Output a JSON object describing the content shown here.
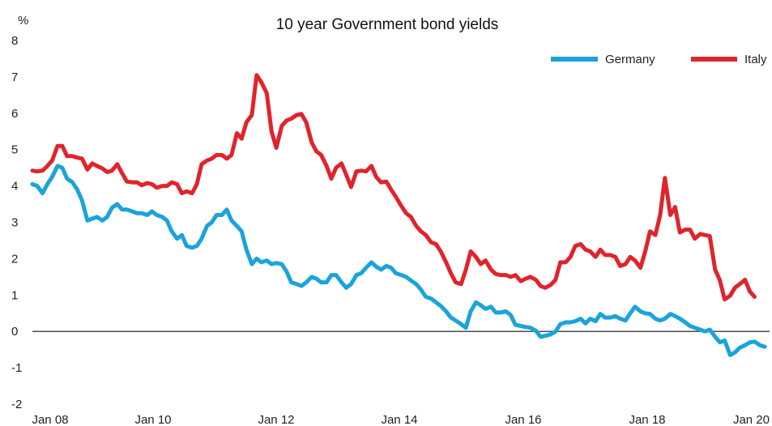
{
  "chart_data": {
    "type": "line",
    "title": "10 year Government bond yields",
    "y_unit": "%",
    "ylim": [
      -2,
      8
    ],
    "y_ticks": [
      "8",
      "7",
      "6",
      "5",
      "4",
      "3",
      "2",
      "1",
      "0",
      "-1",
      "-2"
    ],
    "x_tick_labels": [
      "Jan 08",
      "Jan 10",
      "Jan 12",
      "Jan 14",
      "Jan 16",
      "Jan 18",
      "Jan 20"
    ],
    "xlim": [
      2008.0,
      2020.33
    ],
    "zero_line": true,
    "legend_position": "top-right",
    "series": [
      {
        "name": "Germany",
        "color": "#1aa3dc",
        "points": [
          [
            2008.0,
            4.05
          ],
          [
            2008.08,
            4.0
          ],
          [
            2008.17,
            3.8
          ],
          [
            2008.25,
            4.05
          ],
          [
            2008.33,
            4.25
          ],
          [
            2008.42,
            4.55
          ],
          [
            2008.5,
            4.5
          ],
          [
            2008.58,
            4.2
          ],
          [
            2008.67,
            4.1
          ],
          [
            2008.75,
            3.9
          ],
          [
            2008.83,
            3.6
          ],
          [
            2008.92,
            3.05
          ],
          [
            2009.0,
            3.1
          ],
          [
            2009.08,
            3.15
          ],
          [
            2009.17,
            3.05
          ],
          [
            2009.25,
            3.15
          ],
          [
            2009.33,
            3.4
          ],
          [
            2009.42,
            3.5
          ],
          [
            2009.5,
            3.35
          ],
          [
            2009.58,
            3.35
          ],
          [
            2009.67,
            3.3
          ],
          [
            2009.75,
            3.25
          ],
          [
            2009.83,
            3.25
          ],
          [
            2009.92,
            3.2
          ],
          [
            2010.0,
            3.3
          ],
          [
            2010.08,
            3.2
          ],
          [
            2010.17,
            3.15
          ],
          [
            2010.25,
            3.05
          ],
          [
            2010.33,
            2.75
          ],
          [
            2010.42,
            2.55
          ],
          [
            2010.5,
            2.65
          ],
          [
            2010.58,
            2.35
          ],
          [
            2010.67,
            2.3
          ],
          [
            2010.75,
            2.35
          ],
          [
            2010.83,
            2.55
          ],
          [
            2010.92,
            2.9
          ],
          [
            2011.0,
            3.0
          ],
          [
            2011.08,
            3.2
          ],
          [
            2011.17,
            3.2
          ],
          [
            2011.25,
            3.35
          ],
          [
            2011.33,
            3.05
          ],
          [
            2011.42,
            2.9
          ],
          [
            2011.5,
            2.75
          ],
          [
            2011.58,
            2.25
          ],
          [
            2011.67,
            1.85
          ],
          [
            2011.75,
            2.0
          ],
          [
            2011.83,
            1.9
          ],
          [
            2011.92,
            1.95
          ],
          [
            2012.0,
            1.85
          ],
          [
            2012.08,
            1.88
          ],
          [
            2012.17,
            1.85
          ],
          [
            2012.25,
            1.65
          ],
          [
            2012.33,
            1.35
          ],
          [
            2012.42,
            1.3
          ],
          [
            2012.5,
            1.25
          ],
          [
            2012.58,
            1.35
          ],
          [
            2012.67,
            1.5
          ],
          [
            2012.75,
            1.45
          ],
          [
            2012.83,
            1.35
          ],
          [
            2012.92,
            1.35
          ],
          [
            2013.0,
            1.55
          ],
          [
            2013.08,
            1.55
          ],
          [
            2013.17,
            1.35
          ],
          [
            2013.25,
            1.2
          ],
          [
            2013.33,
            1.3
          ],
          [
            2013.42,
            1.55
          ],
          [
            2013.5,
            1.6
          ],
          [
            2013.58,
            1.75
          ],
          [
            2013.67,
            1.9
          ],
          [
            2013.75,
            1.78
          ],
          [
            2013.83,
            1.7
          ],
          [
            2013.92,
            1.8
          ],
          [
            2014.0,
            1.75
          ],
          [
            2014.08,
            1.6
          ],
          [
            2014.17,
            1.55
          ],
          [
            2014.25,
            1.5
          ],
          [
            2014.33,
            1.4
          ],
          [
            2014.42,
            1.3
          ],
          [
            2014.5,
            1.15
          ],
          [
            2014.58,
            0.95
          ],
          [
            2014.67,
            0.9
          ],
          [
            2014.75,
            0.8
          ],
          [
            2014.83,
            0.7
          ],
          [
            2014.92,
            0.55
          ],
          [
            2015.0,
            0.38
          ],
          [
            2015.08,
            0.3
          ],
          [
            2015.17,
            0.2
          ],
          [
            2015.25,
            0.1
          ],
          [
            2015.33,
            0.55
          ],
          [
            2015.42,
            0.8
          ],
          [
            2015.5,
            0.72
          ],
          [
            2015.58,
            0.62
          ],
          [
            2015.67,
            0.68
          ],
          [
            2015.75,
            0.52
          ],
          [
            2015.83,
            0.52
          ],
          [
            2015.92,
            0.55
          ],
          [
            2016.0,
            0.45
          ],
          [
            2016.08,
            0.18
          ],
          [
            2016.17,
            0.15
          ],
          [
            2016.25,
            0.12
          ],
          [
            2016.33,
            0.1
          ],
          [
            2016.42,
            0.02
          ],
          [
            2016.5,
            -0.15
          ],
          [
            2016.58,
            -0.12
          ],
          [
            2016.67,
            -0.08
          ],
          [
            2016.75,
            0.0
          ],
          [
            2016.83,
            0.2
          ],
          [
            2016.92,
            0.25
          ],
          [
            2017.0,
            0.25
          ],
          [
            2017.08,
            0.28
          ],
          [
            2017.17,
            0.35
          ],
          [
            2017.25,
            0.22
          ],
          [
            2017.33,
            0.35
          ],
          [
            2017.42,
            0.28
          ],
          [
            2017.5,
            0.48
          ],
          [
            2017.58,
            0.38
          ],
          [
            2017.67,
            0.38
          ],
          [
            2017.75,
            0.42
          ],
          [
            2017.83,
            0.35
          ],
          [
            2017.92,
            0.3
          ],
          [
            2018.0,
            0.5
          ],
          [
            2018.08,
            0.68
          ],
          [
            2018.17,
            0.55
          ],
          [
            2018.25,
            0.5
          ],
          [
            2018.33,
            0.48
          ],
          [
            2018.42,
            0.35
          ],
          [
            2018.5,
            0.3
          ],
          [
            2018.58,
            0.35
          ],
          [
            2018.67,
            0.48
          ],
          [
            2018.75,
            0.42
          ],
          [
            2018.83,
            0.35
          ],
          [
            2018.92,
            0.25
          ],
          [
            2019.0,
            0.15
          ],
          [
            2019.08,
            0.1
          ],
          [
            2019.17,
            0.05
          ],
          [
            2019.25,
            0.0
          ],
          [
            2019.33,
            0.05
          ],
          [
            2019.42,
            -0.15
          ],
          [
            2019.5,
            -0.3
          ],
          [
            2019.58,
            -0.25
          ],
          [
            2019.67,
            -0.65
          ],
          [
            2019.75,
            -0.58
          ],
          [
            2019.83,
            -0.45
          ],
          [
            2019.92,
            -0.38
          ],
          [
            2020.0,
            -0.3
          ],
          [
            2020.08,
            -0.28
          ],
          [
            2020.17,
            -0.38
          ],
          [
            2020.25,
            -0.42
          ]
        ]
      },
      {
        "name": "Italy",
        "color": "#e0242b",
        "points": [
          [
            2008.0,
            4.42
          ],
          [
            2008.08,
            4.4
          ],
          [
            2008.17,
            4.42
          ],
          [
            2008.25,
            4.55
          ],
          [
            2008.33,
            4.7
          ],
          [
            2008.42,
            5.1
          ],
          [
            2008.5,
            5.1
          ],
          [
            2008.58,
            4.82
          ],
          [
            2008.67,
            4.82
          ],
          [
            2008.75,
            4.78
          ],
          [
            2008.83,
            4.75
          ],
          [
            2008.92,
            4.45
          ],
          [
            2009.0,
            4.62
          ],
          [
            2009.08,
            4.55
          ],
          [
            2009.17,
            4.48
          ],
          [
            2009.25,
            4.38
          ],
          [
            2009.33,
            4.42
          ],
          [
            2009.42,
            4.6
          ],
          [
            2009.5,
            4.35
          ],
          [
            2009.58,
            4.12
          ],
          [
            2009.67,
            4.1
          ],
          [
            2009.75,
            4.1
          ],
          [
            2009.83,
            4.02
          ],
          [
            2009.92,
            4.08
          ],
          [
            2010.0,
            4.05
          ],
          [
            2010.08,
            3.95
          ],
          [
            2010.17,
            4.0
          ],
          [
            2010.25,
            4.0
          ],
          [
            2010.33,
            4.1
          ],
          [
            2010.42,
            4.05
          ],
          [
            2010.5,
            3.8
          ],
          [
            2010.58,
            3.85
          ],
          [
            2010.67,
            3.8
          ],
          [
            2010.75,
            4.05
          ],
          [
            2010.83,
            4.6
          ],
          [
            2010.92,
            4.7
          ],
          [
            2011.0,
            4.75
          ],
          [
            2011.08,
            4.85
          ],
          [
            2011.17,
            4.85
          ],
          [
            2011.25,
            4.75
          ],
          [
            2011.33,
            4.85
          ],
          [
            2011.42,
            5.45
          ],
          [
            2011.5,
            5.3
          ],
          [
            2011.58,
            5.75
          ],
          [
            2011.67,
            5.95
          ],
          [
            2011.75,
            7.05
          ],
          [
            2011.83,
            6.85
          ],
          [
            2011.92,
            6.55
          ],
          [
            2012.0,
            5.5
          ],
          [
            2012.08,
            5.05
          ],
          [
            2012.17,
            5.65
          ],
          [
            2012.25,
            5.8
          ],
          [
            2012.33,
            5.85
          ],
          [
            2012.42,
            5.95
          ],
          [
            2012.5,
            5.98
          ],
          [
            2012.58,
            5.75
          ],
          [
            2012.67,
            5.2
          ],
          [
            2012.75,
            4.95
          ],
          [
            2012.83,
            4.85
          ],
          [
            2012.92,
            4.55
          ],
          [
            2013.0,
            4.2
          ],
          [
            2013.08,
            4.5
          ],
          [
            2013.17,
            4.62
          ],
          [
            2013.25,
            4.3
          ],
          [
            2013.33,
            3.97
          ],
          [
            2013.42,
            4.4
          ],
          [
            2013.5,
            4.42
          ],
          [
            2013.58,
            4.4
          ],
          [
            2013.67,
            4.55
          ],
          [
            2013.75,
            4.25
          ],
          [
            2013.83,
            4.1
          ],
          [
            2013.92,
            4.12
          ],
          [
            2014.0,
            3.9
          ],
          [
            2014.08,
            3.7
          ],
          [
            2014.17,
            3.45
          ],
          [
            2014.25,
            3.25
          ],
          [
            2014.33,
            3.15
          ],
          [
            2014.42,
            2.9
          ],
          [
            2014.5,
            2.75
          ],
          [
            2014.58,
            2.65
          ],
          [
            2014.67,
            2.45
          ],
          [
            2014.75,
            2.4
          ],
          [
            2014.83,
            2.2
          ],
          [
            2014.92,
            1.9
          ],
          [
            2015.0,
            1.6
          ],
          [
            2015.08,
            1.35
          ],
          [
            2015.17,
            1.3
          ],
          [
            2015.25,
            1.7
          ],
          [
            2015.33,
            2.2
          ],
          [
            2015.42,
            2.05
          ],
          [
            2015.5,
            1.85
          ],
          [
            2015.58,
            1.95
          ],
          [
            2015.67,
            1.7
          ],
          [
            2015.75,
            1.58
          ],
          [
            2015.83,
            1.55
          ],
          [
            2015.92,
            1.55
          ],
          [
            2016.0,
            1.5
          ],
          [
            2016.08,
            1.55
          ],
          [
            2016.17,
            1.38
          ],
          [
            2016.25,
            1.45
          ],
          [
            2016.33,
            1.5
          ],
          [
            2016.42,
            1.42
          ],
          [
            2016.5,
            1.25
          ],
          [
            2016.58,
            1.2
          ],
          [
            2016.67,
            1.28
          ],
          [
            2016.75,
            1.42
          ],
          [
            2016.83,
            1.9
          ],
          [
            2016.92,
            1.9
          ],
          [
            2017.0,
            2.05
          ],
          [
            2017.08,
            2.35
          ],
          [
            2017.17,
            2.4
          ],
          [
            2017.25,
            2.25
          ],
          [
            2017.33,
            2.2
          ],
          [
            2017.42,
            2.05
          ],
          [
            2017.5,
            2.25
          ],
          [
            2017.58,
            2.1
          ],
          [
            2017.67,
            2.1
          ],
          [
            2017.75,
            2.05
          ],
          [
            2017.83,
            1.8
          ],
          [
            2017.92,
            1.85
          ],
          [
            2018.0,
            2.05
          ],
          [
            2018.08,
            1.95
          ],
          [
            2018.17,
            1.75
          ],
          [
            2018.25,
            2.2
          ],
          [
            2018.33,
            2.75
          ],
          [
            2018.42,
            2.65
          ],
          [
            2018.5,
            3.2
          ],
          [
            2018.58,
            4.22
          ],
          [
            2018.67,
            3.2
          ],
          [
            2018.75,
            3.42
          ],
          [
            2018.83,
            2.72
          ],
          [
            2018.92,
            2.8
          ],
          [
            2019.0,
            2.8
          ],
          [
            2019.08,
            2.55
          ],
          [
            2019.17,
            2.68
          ],
          [
            2019.25,
            2.65
          ],
          [
            2019.33,
            2.62
          ],
          [
            2019.42,
            1.7
          ],
          [
            2019.5,
            1.4
          ],
          [
            2019.58,
            0.88
          ],
          [
            2019.67,
            0.98
          ],
          [
            2019.75,
            1.2
          ],
          [
            2019.83,
            1.3
          ],
          [
            2019.92,
            1.42
          ],
          [
            2020.0,
            1.1
          ],
          [
            2020.08,
            0.95
          ]
        ]
      }
    ]
  }
}
